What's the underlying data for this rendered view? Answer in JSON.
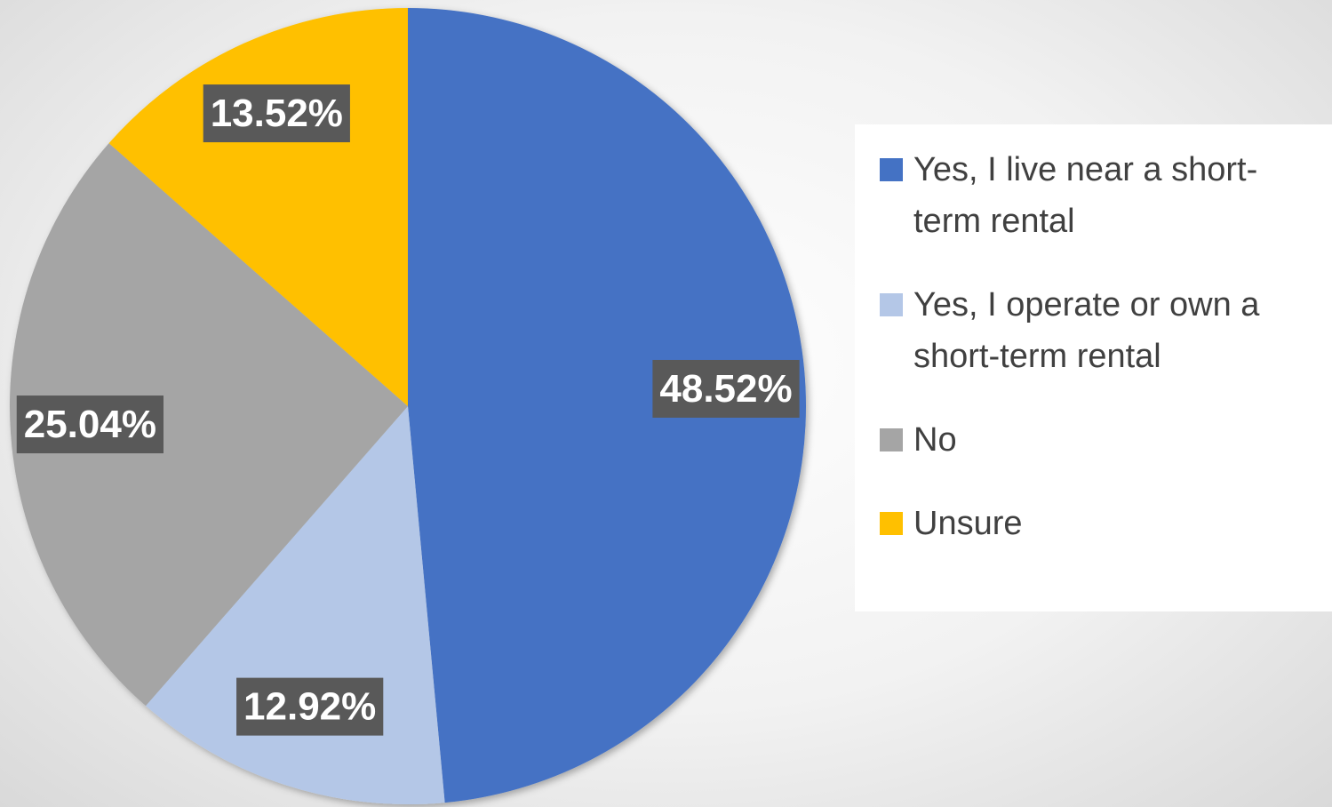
{
  "chart_data": {
    "type": "pie",
    "categories": [
      "Yes, I live near a short-term rental",
      "Yes, I operate or own a short-term rental",
      "No",
      "Unsure"
    ],
    "values": [
      48.52,
      12.92,
      25.04,
      13.52
    ],
    "value_labels": [
      "48.52%",
      "12.92%",
      "25.04%",
      "13.52%"
    ],
    "colors": [
      "#4472c4",
      "#b4c7e7",
      "#a5a5a5",
      "#ffc000"
    ],
    "legend": "right"
  }
}
